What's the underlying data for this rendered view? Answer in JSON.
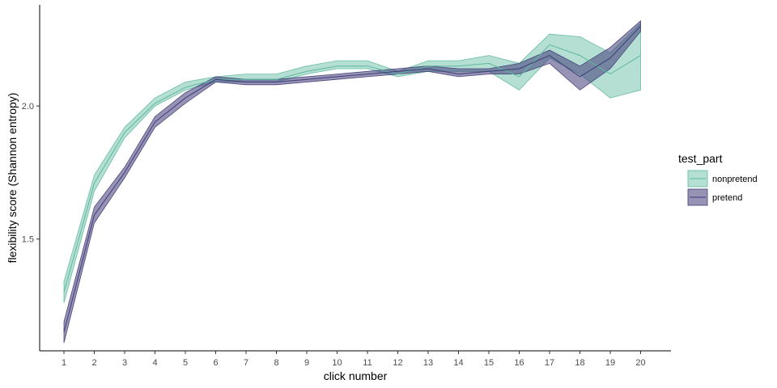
{
  "chart_data": {
    "type": "line",
    "xlabel": "click number",
    "ylabel": "flexibility score (Shannon entropy)",
    "x": [
      1,
      2,
      3,
      4,
      5,
      6,
      7,
      8,
      9,
      10,
      11,
      12,
      13,
      14,
      15,
      16,
      17,
      18,
      19,
      20
    ],
    "xlim": [
      0.2,
      21
    ],
    "ylim": [
      1.08,
      2.38
    ],
    "yticks": [
      1.5,
      2.0
    ],
    "ytick_labels": [
      "1.5",
      "2.0"
    ],
    "grid": false,
    "legend": {
      "title": "test_part",
      "position": "right",
      "entries": [
        "nonpretend",
        "pretend"
      ]
    },
    "series": [
      {
        "name": "nonpretend",
        "color": "#5cb89e",
        "mean": [
          1.3,
          1.71,
          1.9,
          2.01,
          2.07,
          2.1,
          2.1,
          2.1,
          2.13,
          2.15,
          2.15,
          2.12,
          2.15,
          2.15,
          2.16,
          2.11,
          2.23,
          2.19,
          2.12,
          2.19
        ],
        "lower": [
          1.26,
          1.68,
          1.88,
          2.0,
          2.06,
          2.09,
          2.09,
          2.09,
          2.12,
          2.14,
          2.14,
          2.11,
          2.13,
          2.13,
          2.13,
          2.06,
          2.18,
          2.12,
          2.03,
          2.06
        ],
        "upper": [
          1.34,
          1.74,
          1.92,
          2.03,
          2.09,
          2.11,
          2.12,
          2.12,
          2.15,
          2.17,
          2.17,
          2.13,
          2.17,
          2.17,
          2.19,
          2.16,
          2.27,
          2.26,
          2.2,
          2.31
        ]
      },
      {
        "name": "pretend",
        "color": "#3f3b78",
        "mean": [
          1.15,
          1.59,
          1.75,
          1.94,
          2.03,
          2.1,
          2.09,
          2.09,
          2.1,
          2.11,
          2.12,
          2.13,
          2.14,
          2.12,
          2.13,
          2.14,
          2.19,
          2.11,
          2.18,
          2.3
        ],
        "lower": [
          1.11,
          1.56,
          1.73,
          1.92,
          2.01,
          2.09,
          2.08,
          2.08,
          2.09,
          2.1,
          2.11,
          2.12,
          2.13,
          2.11,
          2.12,
          2.12,
          2.16,
          2.06,
          2.14,
          2.28
        ],
        "upper": [
          1.19,
          1.62,
          1.77,
          1.96,
          2.05,
          2.11,
          2.1,
          2.1,
          2.11,
          2.12,
          2.13,
          2.14,
          2.15,
          2.14,
          2.14,
          2.16,
          2.21,
          2.15,
          2.22,
          2.32
        ]
      }
    ]
  }
}
